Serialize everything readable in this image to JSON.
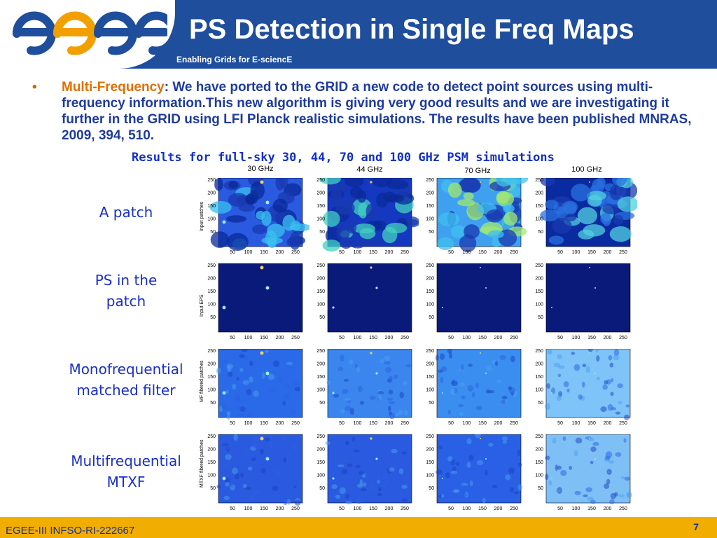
{
  "header": {
    "title": "PS Detection in Single Freq Maps",
    "subtitle": "Enabling Grids for E-sciencE",
    "logo_text": "egee",
    "colors": {
      "band": "#1f4e9c",
      "logo_blue": "#1f4e9c",
      "logo_orange": "#f2a000"
    }
  },
  "bullet": {
    "marker": "•",
    "label": "Multi-Frequency",
    "separator": ":",
    "text": " We have ported to the GRID a new code to detect point sources using multi-frequency information.This new algorithm is giving very good results and we are investigating it further in the GRID using LFI Planck realistic simulations. The results have been published MNRAS, 2009, 394, 510."
  },
  "results_title": "Results for full-sky 30, 44, 70 and 100 GHz PSM simulations",
  "frequencies": [
    "30 GHz",
    "44 GHz",
    "70 GHz",
    "100 GHz"
  ],
  "rows": [
    {
      "label_line1": "A patch",
      "label_line2": "",
      "ylabel": "Input patches"
    },
    {
      "label_line1": "PS in the",
      "label_line2": "patch",
      "ylabel": "Input EPS"
    },
    {
      "label_line1": "Monofrequential",
      "label_line2": "matched filter",
      "ylabel": "MF filtered patches"
    },
    {
      "label_line1": "Multifrequential",
      "label_line2": "MTXF",
      "ylabel": "MTXF filtered patches"
    }
  ],
  "axis": {
    "x_ticks": [
      "50",
      "100",
      "150",
      "200",
      "250"
    ],
    "y_ticks": [
      "250",
      "200",
      "150",
      "100",
      "50"
    ]
  },
  "footer": {
    "left": "EGEE-III INFSO-RI-222667",
    "page": "7",
    "color": "#f2ae00"
  }
}
